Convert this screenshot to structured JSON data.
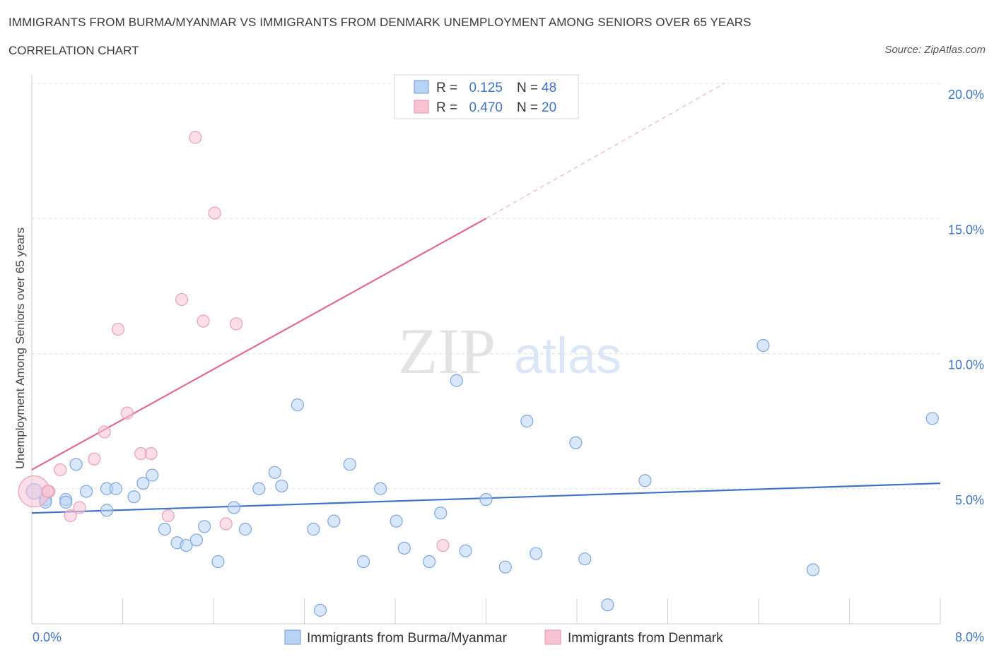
{
  "title": "IMMIGRANTS FROM BURMA/MYANMAR VS IMMIGRANTS FROM DENMARK UNEMPLOYMENT AMONG SENIORS OVER 65 YEARS",
  "subtitle": "CORRELATION CHART",
  "source": "Source: ZipAtlas.com",
  "watermark": {
    "zip": "ZIP",
    "atlas": "atlas"
  },
  "colors": {
    "blue": "#3f74c4",
    "blue_fill": "#b9d3f5",
    "pink": "#e06a93",
    "pink_fill": "#f7c3d3"
  },
  "legend": {
    "rows": [
      {
        "r_label": "R =",
        "r_value": "0.125",
        "n_label": "N =",
        "n_value": "48"
      },
      {
        "r_label": "R =",
        "r_value": "0.470",
        "n_label": "N =",
        "n_value": "20"
      }
    ]
  },
  "chart_data": {
    "type": "scatter",
    "title": "IMMIGRANTS FROM BURMA/MYANMAR VS IMMIGRANTS FROM DENMARK UNEMPLOYMENT AMONG SENIORS OVER 65 YEARS",
    "xlabel": "",
    "ylabel": "Unemployment Among Seniors over 65 years",
    "xlim": [
      0,
      8
    ],
    "ylim": [
      0,
      20
    ],
    "x_tick_labels": [
      "0.0%",
      "8.0%"
    ],
    "y_tick_labels": [
      "5.0%",
      "10.0%",
      "15.0%",
      "20.0%"
    ],
    "y_ticks": [
      5,
      10,
      15,
      20
    ],
    "grid": true,
    "series": [
      {
        "name": "Immigrants from Burma/Myanmar",
        "color": "#3f74c4",
        "r": 0.125,
        "n": 48,
        "trend": {
          "x": [
            0,
            8
          ],
          "y": [
            4.1,
            5.2
          ],
          "dashed_to": null
        },
        "points": [
          [
            0.02,
            4.9
          ],
          [
            0.12,
            4.6
          ],
          [
            0.3,
            4.6
          ],
          [
            0.39,
            5.9
          ],
          [
            0.48,
            4.9
          ],
          [
            0.66,
            5.0
          ],
          [
            0.66,
            4.2
          ],
          [
            0.74,
            5.0
          ],
          [
            0.9,
            4.7
          ],
          [
            0.98,
            5.2
          ],
          [
            1.06,
            5.5
          ],
          [
            1.17,
            3.5
          ],
          [
            1.28,
            3.0
          ],
          [
            1.36,
            2.9
          ],
          [
            1.45,
            3.1
          ],
          [
            1.52,
            3.6
          ],
          [
            1.64,
            2.3
          ],
          [
            1.78,
            4.3
          ],
          [
            1.88,
            3.5
          ],
          [
            2.0,
            5.0
          ],
          [
            2.14,
            5.6
          ],
          [
            2.2,
            5.1
          ],
          [
            2.34,
            8.1
          ],
          [
            2.48,
            3.5
          ],
          [
            2.54,
            0.5
          ],
          [
            2.66,
            3.8
          ],
          [
            2.8,
            5.9
          ],
          [
            2.92,
            2.3
          ],
          [
            3.07,
            5.0
          ],
          [
            3.21,
            3.8
          ],
          [
            3.28,
            2.8
          ],
          [
            3.5,
            2.3
          ],
          [
            3.6,
            4.1
          ],
          [
            3.74,
            9.0
          ],
          [
            3.82,
            2.7
          ],
          [
            4.0,
            4.6
          ],
          [
            4.17,
            2.1
          ],
          [
            4.36,
            7.5
          ],
          [
            4.44,
            2.6
          ],
          [
            4.79,
            6.7
          ],
          [
            4.87,
            2.4
          ],
          [
            5.07,
            0.7
          ],
          [
            5.4,
            5.3
          ],
          [
            6.44,
            10.3
          ],
          [
            6.88,
            2.0
          ],
          [
            7.93,
            7.6
          ],
          [
            0.3,
            4.5
          ],
          [
            0.12,
            4.5
          ]
        ]
      },
      {
        "name": "Immigrants from Denmark",
        "color": "#e06a93",
        "r": 0.47,
        "n": 20,
        "trend": {
          "x": [
            0,
            4.0
          ],
          "y": [
            5.7,
            15.0
          ],
          "dashed_to": [
            6.1,
            20.0
          ]
        },
        "points": [
          [
            0.02,
            4.9
          ],
          [
            0.15,
            4.9
          ],
          [
            0.25,
            5.7
          ],
          [
            0.34,
            4.0
          ],
          [
            0.42,
            4.3
          ],
          [
            0.55,
            6.1
          ],
          [
            0.64,
            7.1
          ],
          [
            0.76,
            10.9
          ],
          [
            0.84,
            7.8
          ],
          [
            0.96,
            6.3
          ],
          [
            1.05,
            6.3
          ],
          [
            1.2,
            4.0
          ],
          [
            1.32,
            12.0
          ],
          [
            1.44,
            18.0
          ],
          [
            1.51,
            11.2
          ],
          [
            1.61,
            15.2
          ],
          [
            1.71,
            3.7
          ],
          [
            1.8,
            11.1
          ],
          [
            3.62,
            2.9
          ],
          [
            0.14,
            4.9
          ]
        ]
      }
    ]
  },
  "bottom_legend": {
    "items": [
      {
        "label": "Immigrants from Burma/Myanmar"
      },
      {
        "label": "Immigrants from Denmark"
      }
    ]
  }
}
